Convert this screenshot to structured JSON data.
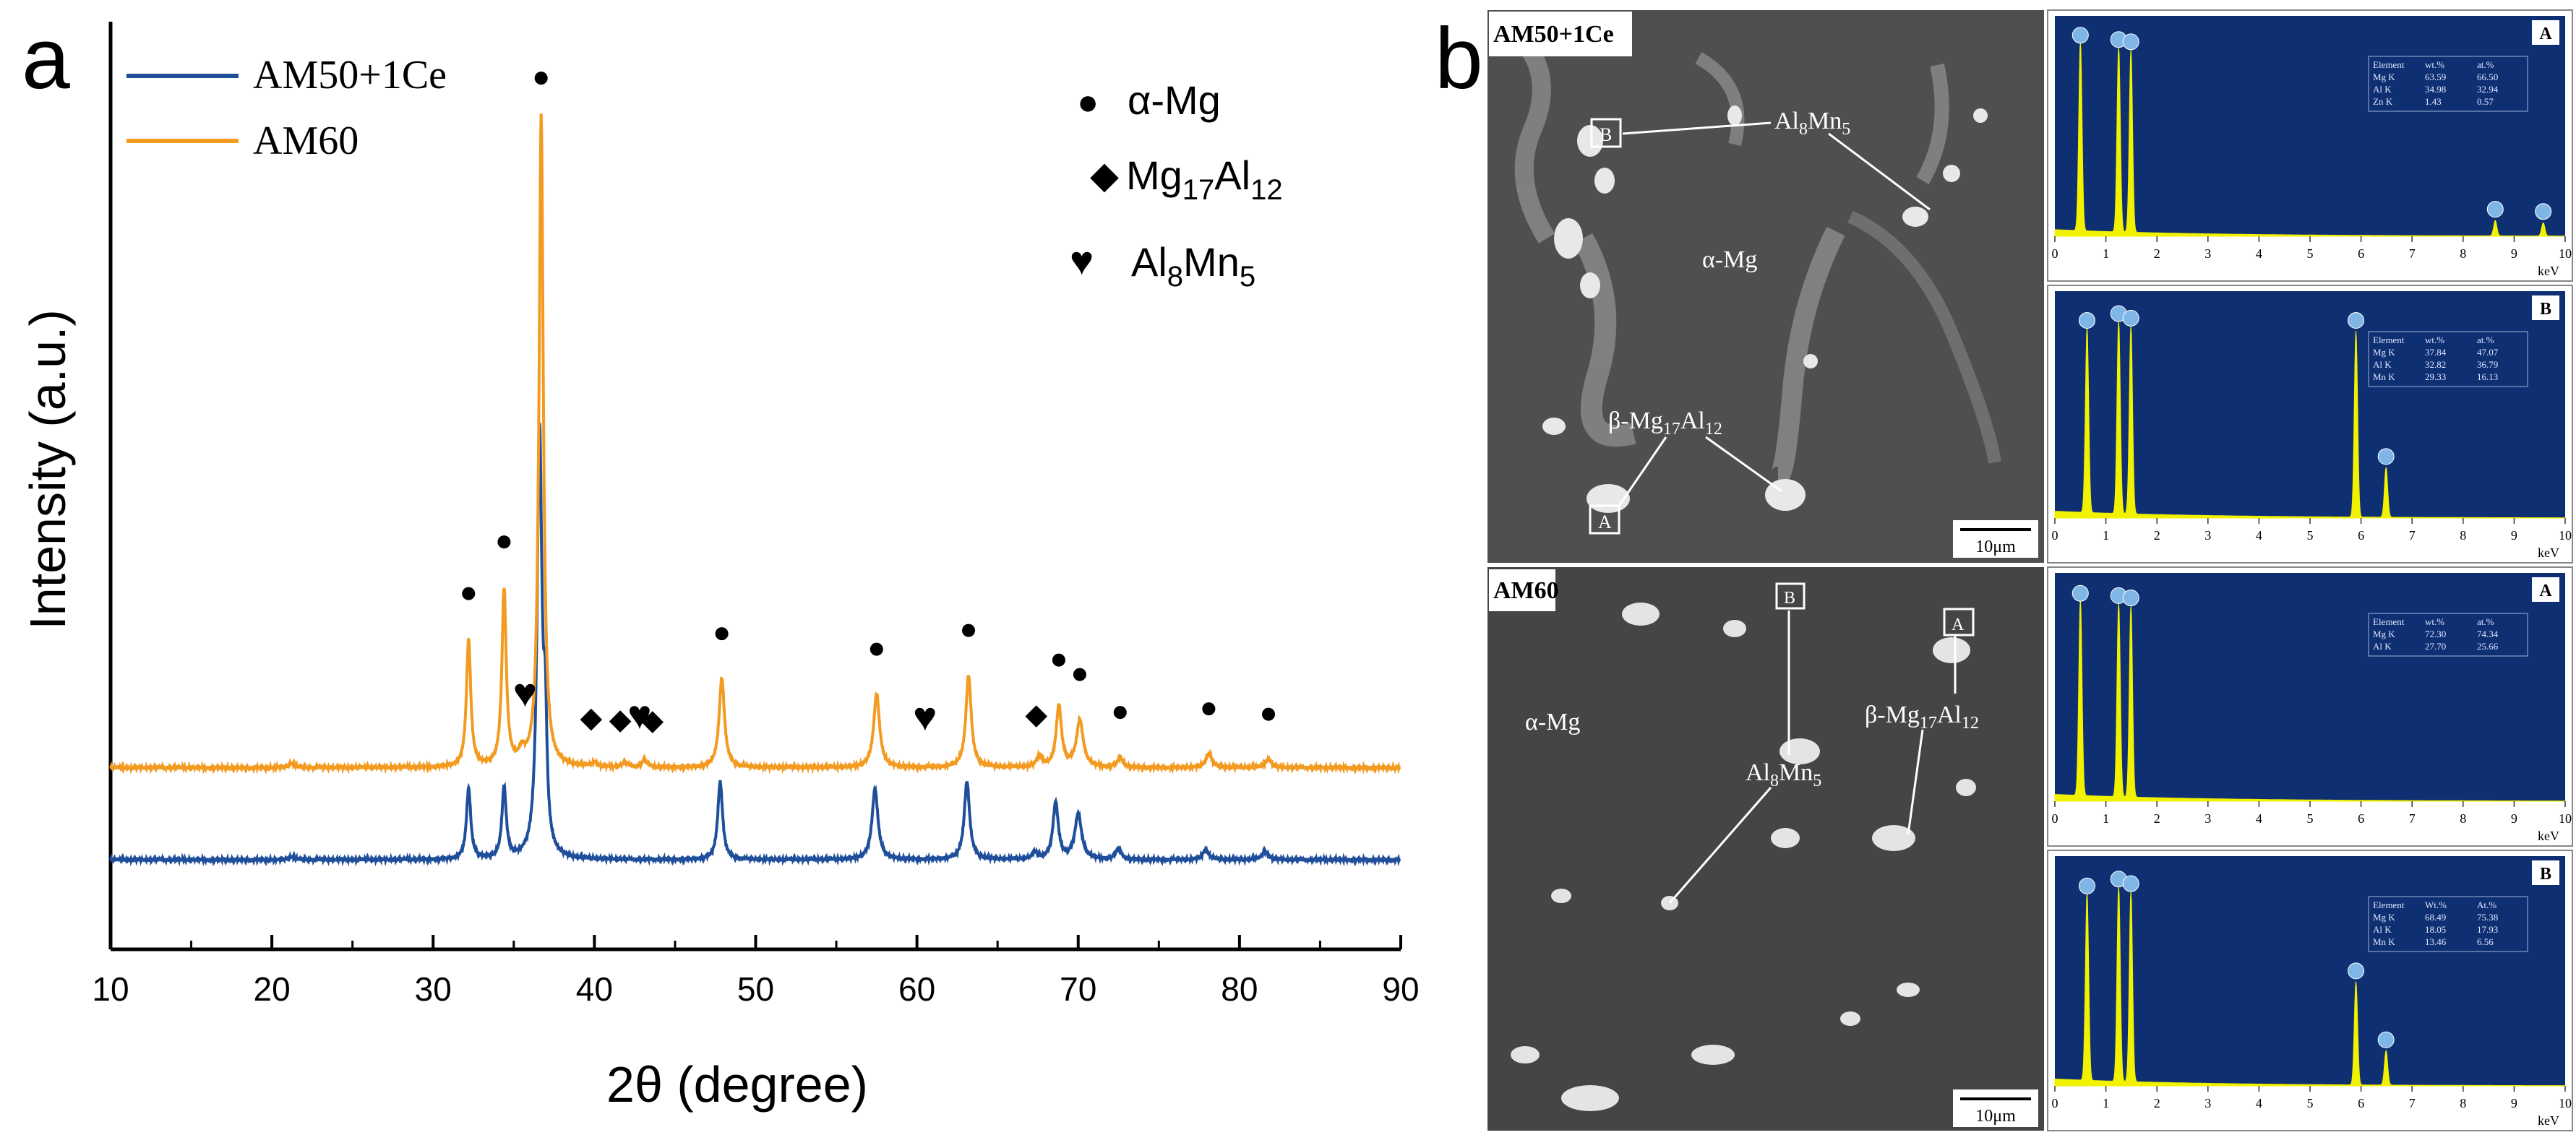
{
  "panel_a": {
    "label": "a",
    "chart_data": {
      "type": "line",
      "xlabel": "2θ (degree)",
      "ylabel": "Intensity (a.u.)",
      "xlim": [
        10,
        90
      ],
      "x_ticks": [
        10,
        20,
        30,
        40,
        50,
        60,
        70,
        80,
        90
      ],
      "grid": false,
      "legend_position": "top-left",
      "series": [
        {
          "name": "AM50+1Ce",
          "color": "#1f4e9b",
          "offset": 0,
          "peaks": [
            {
              "x": 21.2,
              "h": 0.2,
              "w": 0.2
            },
            {
              "x": 32.2,
              "h": 5.0,
              "w": 0.16
            },
            {
              "x": 34.4,
              "h": 5.0,
              "w": 0.16
            },
            {
              "x": 36.6,
              "h": 30.0,
              "w": 0.18
            },
            {
              "x": 36.95,
              "h": 8.0,
              "w": 0.12
            },
            {
              "x": 47.8,
              "h": 5.5,
              "w": 0.18
            },
            {
              "x": 57.4,
              "h": 5.0,
              "w": 0.22
            },
            {
              "x": 63.1,
              "h": 5.5,
              "w": 0.2
            },
            {
              "x": 67.3,
              "h": 0.5,
              "w": 0.18
            },
            {
              "x": 68.6,
              "h": 4.0,
              "w": 0.2
            },
            {
              "x": 70.0,
              "h": 3.2,
              "w": 0.25
            },
            {
              "x": 72.5,
              "h": 0.8,
              "w": 0.2
            },
            {
              "x": 77.9,
              "h": 0.7,
              "w": 0.22
            },
            {
              "x": 81.6,
              "h": 0.6,
              "w": 0.22
            }
          ]
        },
        {
          "name": "AM60",
          "color": "#f39a21",
          "offset": 6.5,
          "peaks": [
            {
              "x": 21.2,
              "h": 0.3,
              "w": 0.2
            },
            {
              "x": 32.2,
              "h": 9.0,
              "w": 0.16
            },
            {
              "x": 34.4,
              "h": 12.5,
              "w": 0.16
            },
            {
              "x": 35.5,
              "h": 0.8,
              "w": 0.2
            },
            {
              "x": 36.7,
              "h": 46.0,
              "w": 0.16
            },
            {
              "x": 40.0,
              "h": 0.3,
              "w": 0.2
            },
            {
              "x": 41.9,
              "h": 0.3,
              "w": 0.2
            },
            {
              "x": 43.1,
              "h": 0.5,
              "w": 0.2
            },
            {
              "x": 47.9,
              "h": 6.3,
              "w": 0.2
            },
            {
              "x": 57.5,
              "h": 5.2,
              "w": 0.22
            },
            {
              "x": 63.2,
              "h": 6.5,
              "w": 0.2
            },
            {
              "x": 67.6,
              "h": 0.8,
              "w": 0.2
            },
            {
              "x": 68.8,
              "h": 4.3,
              "w": 0.2
            },
            {
              "x": 70.1,
              "h": 3.3,
              "w": 0.25
            },
            {
              "x": 72.6,
              "h": 0.7,
              "w": 0.2
            },
            {
              "x": 78.1,
              "h": 1.0,
              "w": 0.22
            },
            {
              "x": 81.8,
              "h": 0.6,
              "w": 0.22
            }
          ]
        }
      ],
      "phase_legend": [
        {
          "symbol": "●",
          "name": "α-Mg"
        },
        {
          "symbol": "◆",
          "name": "Mg17Al12"
        },
        {
          "symbol": "♥",
          "name": "Al8Mn5"
        }
      ],
      "peak_markers": [
        {
          "symbol": "●",
          "x": 32.2
        },
        {
          "symbol": "●",
          "x": 34.4
        },
        {
          "symbol": "●",
          "x": 36.7
        },
        {
          "symbol": "♥",
          "x": 35.7
        },
        {
          "symbol": "◆",
          "x": 39.8
        },
        {
          "symbol": "◆",
          "x": 41.6
        },
        {
          "symbol": "♥",
          "x": 42.8
        },
        {
          "symbol": "◆",
          "x": 43.6
        },
        {
          "symbol": "●",
          "x": 47.9
        },
        {
          "symbol": "●",
          "x": 57.5
        },
        {
          "symbol": "♥",
          "x": 60.5
        },
        {
          "symbol": "●",
          "x": 63.2
        },
        {
          "symbol": "◆",
          "x": 67.4
        },
        {
          "symbol": "●",
          "x": 68.8
        },
        {
          "symbol": "●",
          "x": 70.1
        },
        {
          "symbol": "●",
          "x": 72.6
        },
        {
          "symbol": "●",
          "x": 78.1
        },
        {
          "symbol": "●",
          "x": 81.8
        }
      ]
    }
  },
  "panel_b": {
    "label": "b",
    "scale_bar": "10μm",
    "eds_axis": {
      "ticks": [
        "0",
        "1",
        "2",
        "3",
        "4",
        "5",
        "6",
        "7",
        "8",
        "9",
        "10"
      ],
      "unit": "keV"
    },
    "eds_table_headers_wt": [
      "Element",
      "wt.%",
      "at.%"
    ],
    "eds_table_headers_wtb2": [
      "Element",
      "Wt.%",
      "At.%"
    ],
    "samples": [
      {
        "name": "AM50+1Ce",
        "labels": [
          "α-Mg",
          "Al8Mn5",
          "β-Mg17Al12"
        ],
        "spectra": [
          {
            "label": "A",
            "table": [
              [
                "Mg K",
                "63.59",
                "66.50"
              ],
              [
                "Al K",
                "34.98",
                "32.94"
              ],
              [
                "Zn K",
                "1.43",
                "0.57"
              ]
            ],
            "peaks": [
              {
                "x": 0.5,
                "h": 0.86
              },
              {
                "x": 1.25,
                "h": 0.84
              },
              {
                "x": 1.49,
                "h": 0.83
              },
              {
                "x": 8.63,
                "h": 0.07
              },
              {
                "x": 9.57,
                "h": 0.06
              }
            ]
          },
          {
            "label": "B",
            "table": [
              [
                "Mg K",
                "37.84",
                "47.07"
              ],
              [
                "Al K",
                "32.82",
                "36.79"
              ],
              [
                "Mn K",
                "29.33",
                "16.13"
              ]
            ],
            "peaks": [
              {
                "x": 0.63,
                "h": 0.82
              },
              {
                "x": 1.25,
                "h": 0.85
              },
              {
                "x": 1.49,
                "h": 0.83
              },
              {
                "x": 5.9,
                "h": 0.82
              },
              {
                "x": 6.49,
                "h": 0.22
              }
            ]
          }
        ]
      },
      {
        "name": "AM60",
        "labels": [
          "α-Mg",
          "Al8Mn5",
          "β-Mg17Al12"
        ],
        "spectra": [
          {
            "label": "A",
            "table": [
              [
                "Mg K",
                "72.30",
                "74.34"
              ],
              [
                "Al K",
                "27.70",
                "25.66"
              ]
            ],
            "peaks": [
              {
                "x": 0.5,
                "h": 0.86
              },
              {
                "x": 1.25,
                "h": 0.85
              },
              {
                "x": 1.49,
                "h": 0.84
              }
            ]
          },
          {
            "label": "B",
            "table": [
              [
                "Mg K",
                "68.49",
                "75.38"
              ],
              [
                "Al K",
                "18.05",
                "17.93"
              ],
              [
                "Mn K",
                "13.46",
                "6.56"
              ]
            ],
            "peaks": [
              {
                "x": 0.63,
                "h": 0.82
              },
              {
                "x": 1.25,
                "h": 0.85
              },
              {
                "x": 1.49,
                "h": 0.83
              },
              {
                "x": 5.9,
                "h": 0.45
              },
              {
                "x": 6.49,
                "h": 0.15
              }
            ]
          }
        ]
      }
    ]
  }
}
